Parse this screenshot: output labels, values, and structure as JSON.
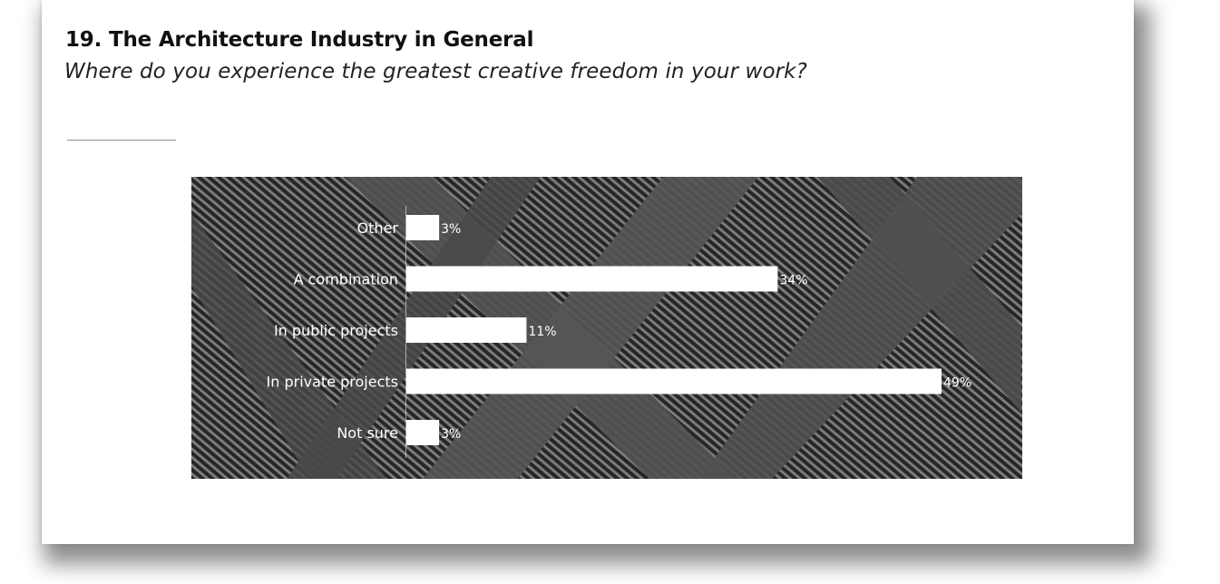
{
  "slide": {
    "title": "19. The Architecture Industry in General",
    "subtitle": "Where do you experience the greatest creative freedom in your work?"
  },
  "chart_data": {
    "type": "bar",
    "orientation": "horizontal",
    "categories": [
      "Other",
      "A combination",
      "In public projects",
      "In private projects",
      "Not sure"
    ],
    "values": [
      3,
      34,
      11,
      49,
      3
    ],
    "value_labels": [
      "3%",
      "34%",
      "11%",
      "49%",
      "3%"
    ],
    "unit": "%",
    "xlim": [
      0,
      49
    ],
    "grid": false,
    "legend": "none",
    "colors": {
      "bar": "#ffffff",
      "label": "#ffffff",
      "background": "#4a4a4a"
    }
  }
}
